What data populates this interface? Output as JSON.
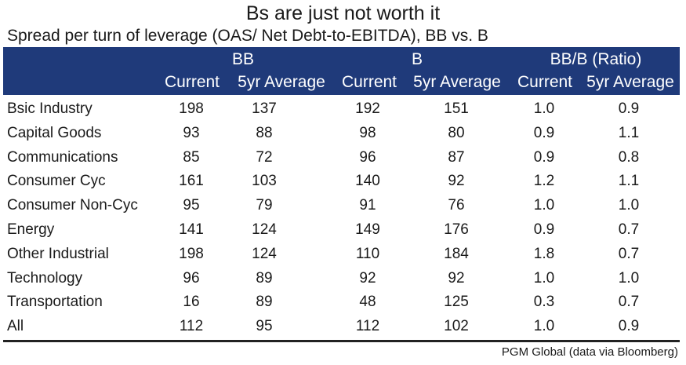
{
  "title": "Bs are just not worth it",
  "subtitle": "Spread per turn of leverage (OAS/ Net Debt-to-EBITDA), BB vs. B",
  "source": "PGM Global (data via Bloomberg)",
  "colors": {
    "header_bg": "#1f3a7a",
    "header_text": "#ffffff"
  },
  "chart_data": {
    "type": "table",
    "title": "Bs are just not worth it",
    "subtitle": "Spread per turn of leverage (OAS/ Net Debt-to-EBITDA), BB vs. B",
    "column_groups": [
      "BB",
      "B",
      "BB/B (Ratio)"
    ],
    "subcolumns": [
      "Current",
      "5yr Average",
      "Current",
      "5yr Average",
      "Current",
      "5yr Average"
    ],
    "rows": [
      {
        "label": "Bsic Industry",
        "values": [
          "198",
          "137",
          "192",
          "151",
          "1.0",
          "0.9"
        ]
      },
      {
        "label": "Capital Goods",
        "values": [
          "93",
          "88",
          "98",
          "80",
          "0.9",
          "1.1"
        ]
      },
      {
        "label": "Communications",
        "values": [
          "85",
          "72",
          "96",
          "87",
          "0.9",
          "0.8"
        ]
      },
      {
        "label": "Consumer Cyc",
        "values": [
          "161",
          "103",
          "140",
          "92",
          "1.2",
          "1.1"
        ]
      },
      {
        "label": "Consumer Non-Cyc",
        "values": [
          "95",
          "79",
          "91",
          "76",
          "1.0",
          "1.0"
        ]
      },
      {
        "label": "Energy",
        "values": [
          "141",
          "124",
          "149",
          "176",
          "0.9",
          "0.7"
        ]
      },
      {
        "label": "Other Industrial",
        "values": [
          "198",
          "124",
          "110",
          "184",
          "1.8",
          "0.7"
        ]
      },
      {
        "label": "Technology",
        "values": [
          "96",
          "89",
          "92",
          "92",
          "1.0",
          "1.0"
        ]
      },
      {
        "label": "Transportation",
        "values": [
          "16",
          "89",
          "48",
          "125",
          "0.3",
          "0.7"
        ]
      },
      {
        "label": "All",
        "values": [
          "112",
          "95",
          "112",
          "102",
          "1.0",
          "0.9"
        ]
      }
    ]
  }
}
